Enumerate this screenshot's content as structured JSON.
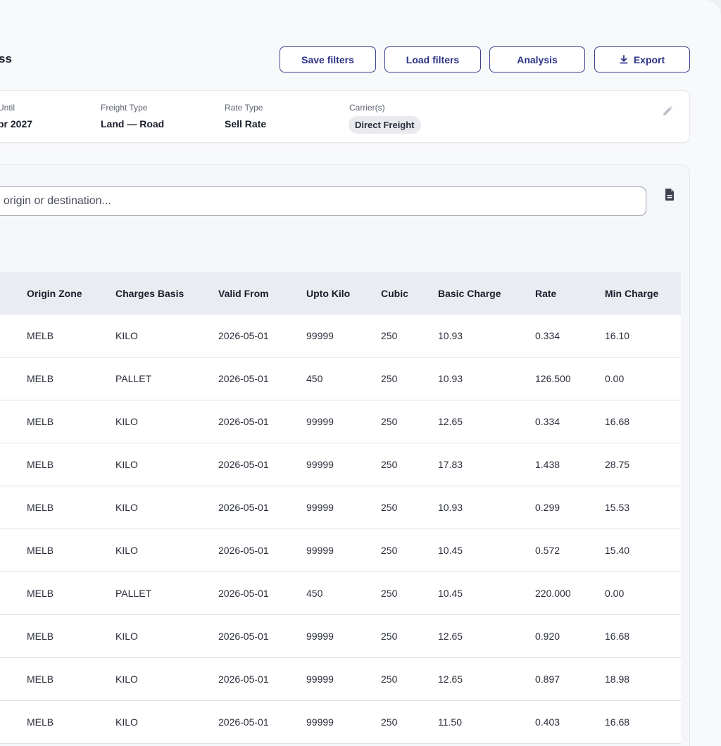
{
  "header": {
    "title": "ss",
    "buttons": {
      "save": "Save filters",
      "load": "Load filters",
      "analysis": "Analysis",
      "export": "Export"
    }
  },
  "filters": {
    "until": {
      "label": "Until",
      "value": "pr 2027"
    },
    "freight_type": {
      "label": "Freight Type",
      "value": "Land — Road"
    },
    "rate_type": {
      "label": "Rate Type",
      "value": "Sell Rate"
    },
    "carriers": {
      "label": "Carrier(s)",
      "chip": "Direct Freight"
    }
  },
  "search": {
    "placeholder": ", origin or destination..."
  },
  "table": {
    "columns": [
      "Origin Zone",
      "Charges Basis",
      "Valid From",
      "Upto Kilo",
      "Cubic",
      "Basic Charge",
      "Rate",
      "Min Charge"
    ],
    "rows": [
      [
        "MELB",
        "KILO",
        "2026-05-01",
        "99999",
        "250",
        "10.93",
        "0.334",
        "16.10"
      ],
      [
        "MELB",
        "PALLET",
        "2026-05-01",
        "450",
        "250",
        "10.93",
        "126.500",
        "0.00"
      ],
      [
        "MELB",
        "KILO",
        "2026-05-01",
        "99999",
        "250",
        "12.65",
        "0.334",
        "16.68"
      ],
      [
        "MELB",
        "KILO",
        "2026-05-01",
        "99999",
        "250",
        "17.83",
        "1.438",
        "28.75"
      ],
      [
        "MELB",
        "KILO",
        "2026-05-01",
        "99999",
        "250",
        "10.93",
        "0.299",
        "15.53"
      ],
      [
        "MELB",
        "KILO",
        "2026-05-01",
        "99999",
        "250",
        "10.45",
        "0.572",
        "15.40"
      ],
      [
        "MELB",
        "PALLET",
        "2026-05-01",
        "450",
        "250",
        "10.45",
        "220.000",
        "0.00"
      ],
      [
        "MELB",
        "KILO",
        "2026-05-01",
        "99999",
        "250",
        "12.65",
        "0.920",
        "16.68"
      ],
      [
        "MELB",
        "KILO",
        "2026-05-01",
        "99999",
        "250",
        "12.65",
        "0.897",
        "18.98"
      ],
      [
        "MELB",
        "KILO",
        "2026-05-01",
        "99999",
        "250",
        "11.50",
        "0.403",
        "16.68"
      ]
    ]
  },
  "colors": {
    "accent": "#2e3285",
    "table_header_bg": "#e9ecf1",
    "chip_bg": "#e9eaee"
  },
  "icons": {
    "export": "download-icon",
    "edit": "pencil-icon",
    "document": "document-icon"
  }
}
